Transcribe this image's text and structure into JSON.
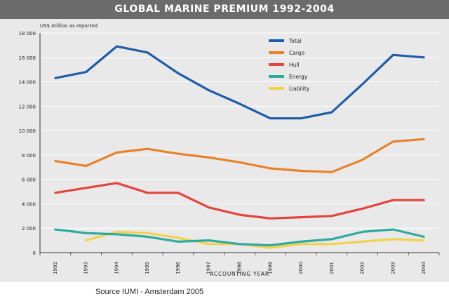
{
  "title": "GLOBAL MARINE PREMIUM 1992-2004",
  "source": "Source IUMI - Amsterdam 2005",
  "chart_data": {
    "type": "line",
    "ylabel": "US$ million as reported",
    "xlabel": "ACCOUNTING YEAR",
    "x": [
      "1992",
      "1993",
      "1994",
      "1995",
      "1996",
      "1997",
      "1998",
      "1999",
      "2000",
      "2001",
      "2002",
      "2003",
      "2004"
    ],
    "ylim": [
      0,
      18000
    ],
    "yticks": [
      0,
      2000,
      4000,
      6000,
      8000,
      10000,
      12000,
      14000,
      16000,
      18000
    ],
    "ytick_labels": [
      "0",
      "2 000",
      "4 000",
      "6 000",
      "8 000",
      "10 000",
      "12 000",
      "14 000",
      "16 000",
      "18 000"
    ],
    "grid": true,
    "legend_position": "top-center",
    "series": [
      {
        "name": "Total",
        "color": "#1f5ca8",
        "values": [
          14300,
          14800,
          16900,
          16400,
          14700,
          13300,
          12200,
          11000,
          11000,
          11500,
          13800,
          16200,
          16000
        ]
      },
      {
        "name": "Cargo",
        "color": "#e8822a",
        "values": [
          7500,
          7100,
          8200,
          8500,
          8100,
          7800,
          7400,
          6900,
          6700,
          6600,
          7600,
          9100,
          9300
        ]
      },
      {
        "name": "Hull",
        "color": "#e2453c",
        "values": [
          4900,
          5300,
          5700,
          4900,
          4900,
          3700,
          3100,
          2800,
          2900,
          3000,
          3600,
          4300,
          4300
        ]
      },
      {
        "name": "Energy",
        "color": "#2eaaa0",
        "values": [
          1900,
          1600,
          1500,
          1300,
          900,
          1000,
          700,
          600,
          900,
          1100,
          1700,
          1900,
          1300
        ]
      },
      {
        "name": "Liability",
        "color": "#f2d24a",
        "values": [
          null,
          1000,
          1700,
          1600,
          1200,
          700,
          700,
          400,
          700,
          700,
          900,
          1100,
          1000
        ]
      }
    ]
  }
}
